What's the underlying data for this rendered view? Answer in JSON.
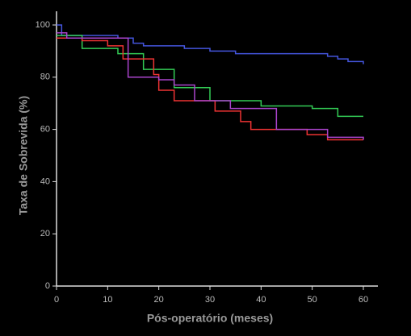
{
  "chart_data": {
    "type": "line",
    "step": true,
    "xlabel": "Pós-operatório (meses)",
    "ylabel": "Taxa de Sobrevida (%)",
    "xlim": [
      0,
      60
    ],
    "xticks": [
      0,
      10,
      20,
      30,
      40,
      50,
      60
    ],
    "ylim": [
      0,
      100
    ],
    "yticks": [
      0,
      20,
      40,
      60,
      80,
      100
    ],
    "series": [
      {
        "color": "#4455dd",
        "x": [
          0,
          1,
          12,
          15,
          17,
          25,
          30,
          35,
          53,
          55,
          57,
          60
        ],
        "values": [
          100,
          96,
          95,
          93,
          92,
          91,
          90,
          89,
          88,
          87,
          86,
          85
        ]
      },
      {
        "color": "#33cc55",
        "x": [
          0,
          5,
          12,
          17,
          23,
          30,
          40,
          50,
          55,
          60
        ],
        "values": [
          96,
          91,
          89,
          83,
          76,
          71,
          69,
          68,
          65,
          65
        ]
      },
      {
        "color": "#ee3333",
        "x": [
          0,
          5,
          10,
          13,
          19,
          20,
          23,
          31,
          36,
          38,
          49,
          53,
          60
        ],
        "values": [
          95,
          94,
          92,
          87,
          81,
          75,
          71,
          67,
          63,
          60,
          58,
          56,
          56
        ]
      },
      {
        "color": "#aa44cc",
        "x": [
          0,
          2,
          14,
          20,
          23,
          27,
          34,
          43,
          53,
          60
        ],
        "values": [
          97,
          95,
          80,
          79,
          77,
          71,
          68,
          60,
          57,
          56
        ]
      }
    ]
  }
}
